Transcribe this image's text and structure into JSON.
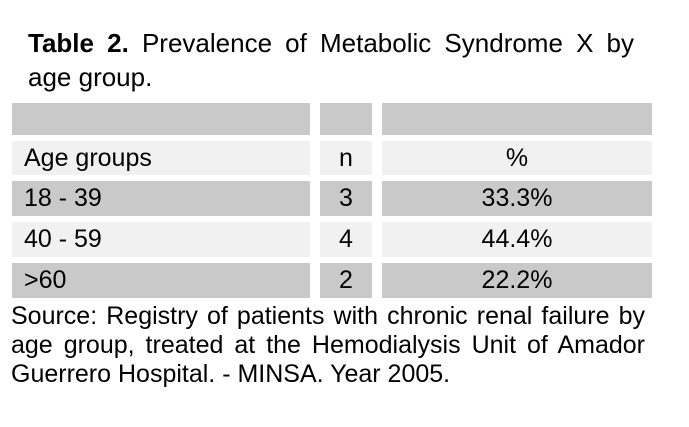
{
  "title": {
    "label": "Table 2.",
    "line1_rest": "Prevalence of Metabolic Syndrome X by",
    "line2": "age group."
  },
  "table": {
    "columns": [
      "Age groups",
      "n",
      "%"
    ],
    "rows": [
      {
        "age_group": "18 - 39",
        "n": "3",
        "percent": "33.3%"
      },
      {
        "age_group": "40 - 59",
        "n": "4",
        "percent": "44.4%"
      },
      {
        "age_group": ">60",
        "n": "2",
        "percent": "22.2%"
      }
    ]
  },
  "source": {
    "lines": [
      "Source: Registry of patients with chronic renal failure by",
      "age group, treated at the Hemodialysis Unit of Amador",
      "Guerrero Hospital. - MINSA. Year 2005."
    ]
  },
  "colors": {
    "row_shaded": "#c9c9c9",
    "row_light": "#f1f1f1",
    "text": "#000000",
    "background": "#ffffff"
  }
}
